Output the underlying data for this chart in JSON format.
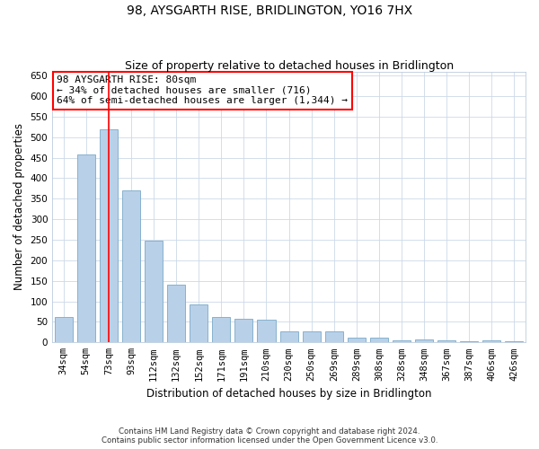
{
  "title": "98, AYSGARTH RISE, BRIDLINGTON, YO16 7HX",
  "subtitle": "Size of property relative to detached houses in Bridlington",
  "xlabel": "Distribution of detached houses by size in Bridlington",
  "ylabel": "Number of detached properties",
  "footer_line1": "Contains HM Land Registry data © Crown copyright and database right 2024.",
  "footer_line2": "Contains public sector information licensed under the Open Government Licence v3.0.",
  "categories": [
    "34sqm",
    "54sqm",
    "73sqm",
    "93sqm",
    "112sqm",
    "132sqm",
    "152sqm",
    "171sqm",
    "191sqm",
    "210sqm",
    "230sqm",
    "250sqm",
    "269sqm",
    "289sqm",
    "308sqm",
    "328sqm",
    "348sqm",
    "367sqm",
    "387sqm",
    "406sqm",
    "426sqm"
  ],
  "values": [
    62,
    458,
    520,
    370,
    248,
    140,
    93,
    62,
    58,
    55,
    27,
    27,
    27,
    12,
    12,
    6,
    8,
    4,
    3,
    4,
    3
  ],
  "bar_color": "#b8d0e8",
  "bar_edge_color": "#7aaac8",
  "red_line_index": 2,
  "annotation_line1": "98 AYSGARTH RISE: 80sqm",
  "annotation_line2": "← 34% of detached houses are smaller (716)",
  "annotation_line3": "64% of semi-detached houses are larger (1,344) →",
  "annotation_box_color": "white",
  "annotation_box_edge_color": "red",
  "ylim": [
    0,
    660
  ],
  "yticks": [
    0,
    50,
    100,
    150,
    200,
    250,
    300,
    350,
    400,
    450,
    500,
    550,
    600,
    650
  ],
  "grid_color": "#ccd9e8",
  "background_color": "white",
  "title_fontsize": 10,
  "subtitle_fontsize": 9,
  "tick_fontsize": 7.5,
  "xlabel_fontsize": 8.5,
  "ylabel_fontsize": 8.5,
  "annotation_fontsize": 8
}
